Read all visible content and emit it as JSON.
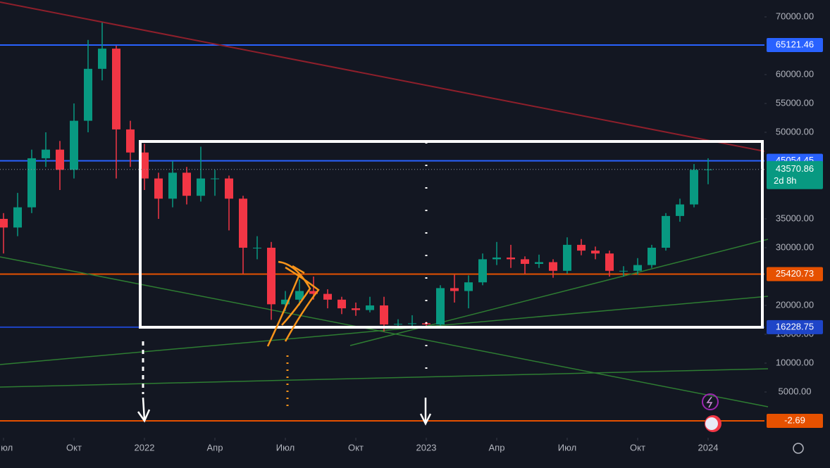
{
  "chart_data": {
    "type": "candlestick",
    "x": [
      0,
      1,
      2,
      3,
      4,
      5,
      6,
      7,
      8,
      9,
      10,
      11,
      12,
      13,
      14,
      15,
      16,
      17,
      18,
      19,
      20,
      21,
      22,
      23,
      24,
      25,
      26,
      27,
      28,
      29,
      30,
      31,
      32,
      33,
      34,
      35,
      36,
      37,
      38,
      39,
      40,
      41,
      42,
      43,
      44,
      45,
      46,
      47,
      48,
      49,
      50
    ],
    "open": [
      35000,
      33500,
      37000,
      45500,
      47000,
      43500,
      52000,
      61000,
      64500,
      50500,
      46500,
      42000,
      38500,
      43000,
      39000,
      42000,
      42000,
      38500,
      30000,
      30000,
      20200,
      21000,
      22500,
      22000,
      21000,
      19500,
      19200,
      20000,
      16700,
      16800,
      16900,
      16700,
      23000,
      22500,
      24000,
      28000,
      28300,
      28000,
      27200,
      27500,
      26000,
      30500,
      29500,
      29000,
      26000,
      26000,
      27000,
      30000,
      35500,
      37500,
      43500
    ],
    "high": [
      36000,
      39500,
      47000,
      50000,
      48500,
      55000,
      66000,
      69000,
      65000,
      52000,
      48000,
      43000,
      45000,
      44000,
      47500,
      43500,
      42500,
      39000,
      32000,
      31000,
      22500,
      24500,
      25000,
      22800,
      21500,
      20500,
      21500,
      21500,
      17600,
      18300,
      17200,
      23500,
      25300,
      25200,
      29000,
      31000,
      30500,
      28500,
      28800,
      28000,
      31800,
      31500,
      30200,
      29500,
      26800,
      28200,
      30500,
      36000,
      38500,
      44500,
      45500
    ],
    "low": [
      29000,
      32000,
      36000,
      44000,
      40000,
      42000,
      50000,
      59000,
      42000,
      44000,
      40000,
      35000,
      37000,
      37500,
      38000,
      39000,
      33000,
      25500,
      28000,
      17500,
      19000,
      20000,
      21000,
      19500,
      18500,
      18200,
      18800,
      15500,
      16000,
      16300,
      16300,
      16500,
      20500,
      19500,
      23500,
      27000,
      26500,
      25500,
      26500,
      24800,
      25500,
      28700,
      28000,
      25000,
      25000,
      25300,
      26500,
      29500,
      34500,
      37000,
      41000
    ],
    "close": [
      33500,
      37000,
      45500,
      47000,
      43500,
      52000,
      61000,
      64500,
      50500,
      46500,
      42000,
      38500,
      43000,
      39000,
      42000,
      42000,
      38500,
      30000,
      30000,
      20200,
      21000,
      22500,
      22000,
      21000,
      19500,
      19200,
      20000,
      16700,
      16800,
      16900,
      16700,
      23000,
      22500,
      24000,
      28000,
      28300,
      28000,
      27200,
      27500,
      26000,
      30500,
      29500,
      29000,
      26000,
      26000,
      27000,
      30000,
      35500,
      37500,
      43500,
      43570.86
    ],
    "up_color": "#089981",
    "down_color": "#f23645",
    "xlim": [
      -0.25,
      54
    ],
    "xticks": [
      {
        "value": 0,
        "label": "Июл"
      },
      {
        "value": 5,
        "label": "Окт"
      },
      {
        "value": 10,
        "label": "2022"
      },
      {
        "value": 15,
        "label": "Апр"
      },
      {
        "value": 20,
        "label": "Июл"
      },
      {
        "value": 25,
        "label": "Окт"
      },
      {
        "value": 30,
        "label": "2023"
      },
      {
        "value": 35,
        "label": "Апр"
      },
      {
        "value": 40,
        "label": "Июл"
      },
      {
        "value": 45,
        "label": "Окт"
      },
      {
        "value": 50,
        "label": "2024"
      }
    ],
    "ylim": [
      -2683,
      72927
    ],
    "yticks": [
      {
        "value": 70000,
        "label": "70000.00"
      },
      {
        "value": 60000,
        "label": "60000.00"
      },
      {
        "value": 55000,
        "label": "55000.00"
      },
      {
        "value": 50000,
        "label": "50000.00"
      },
      {
        "value": 35000,
        "label": "35000.00"
      },
      {
        "value": 30000,
        "label": "30000.00"
      },
      {
        "value": 20000,
        "label": "20000.00"
      },
      {
        "value": 15000,
        "label": "15000.00"
      },
      {
        "value": 10000,
        "label": "10000.00"
      },
      {
        "value": 5000,
        "label": "5000.00"
      }
    ],
    "price_lines": [
      {
        "value": 65121.46,
        "color": "#2962ff"
      },
      {
        "value": 45054.45,
        "color": "#2962ff"
      },
      {
        "value": 25420.73,
        "color": "#e65100"
      },
      {
        "value": 16228.75,
        "color": "#1e45c8"
      },
      {
        "value": -2.69,
        "color": "#e65100"
      }
    ],
    "countdown": "2d 8h",
    "grid": false
  }
}
